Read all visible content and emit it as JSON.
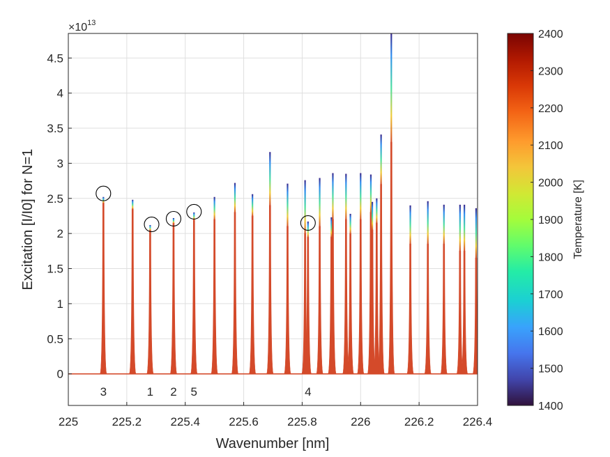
{
  "chart_data": {
    "type": "line",
    "xlabel": "Wavenumber [nm]",
    "ylabel": "Excitation [I/I0] for N=1",
    "y_exponent_label": "×10",
    "y_exponent_power": "13",
    "xlim": [
      225,
      226.4
    ],
    "ylim": [
      -0.45,
      4.85
    ],
    "grid": true,
    "x_ticks": [
      225,
      225.2,
      225.4,
      225.6,
      225.8,
      226,
      226.2,
      226.4
    ],
    "x_tick_labels": [
      "225",
      "225.2",
      "225.4",
      "225.6",
      "225.8",
      "226",
      "226.2",
      "226.4"
    ],
    "y_ticks": [
      0,
      0.5,
      1,
      1.5,
      2,
      2.5,
      3,
      3.5,
      4,
      4.5
    ],
    "y_tick_labels": [
      "0",
      "0.5",
      "1",
      "1.5",
      "2",
      "2.5",
      "3",
      "3.5",
      "4",
      "4.5"
    ],
    "colormap": "turbo",
    "peak_color": "#D44A2A",
    "colorbar": {
      "label": "Temperature [K]",
      "range": [
        1400,
        2400
      ],
      "ticks": [
        1400,
        1500,
        1600,
        1700,
        1800,
        1900,
        2000,
        2100,
        2200,
        2300,
        2400
      ],
      "tick_labels": [
        "1400",
        "1500",
        "1600",
        "1700",
        "1800",
        "1900",
        "2000",
        "2100",
        "2200",
        "2300",
        "2400"
      ]
    },
    "peaks": [
      {
        "x": 225.12,
        "top": 2.52,
        "low": 2.44
      },
      {
        "x": 225.22,
        "top": 2.48,
        "low": 2.35
      },
      {
        "x": 225.28,
        "top": 2.12,
        "low": 2.05
      },
      {
        "x": 225.36,
        "top": 2.22,
        "low": 2.15
      },
      {
        "x": 225.43,
        "top": 2.3,
        "low": 2.2
      },
      {
        "x": 225.5,
        "top": 2.52,
        "low": 2.2
      },
      {
        "x": 225.57,
        "top": 2.72,
        "low": 2.3
      },
      {
        "x": 225.63,
        "top": 2.56,
        "low": 2.25
      },
      {
        "x": 225.69,
        "top": 3.16,
        "low": 2.4
      },
      {
        "x": 225.75,
        "top": 2.71,
        "low": 2.1
      },
      {
        "x": 225.81,
        "top": 2.76,
        "low": 2.0
      },
      {
        "x": 225.82,
        "top": 2.17,
        "low": 1.95
      },
      {
        "x": 225.86,
        "top": 2.79,
        "low": 2.1
      },
      {
        "x": 225.9,
        "top": 2.23,
        "low": 1.95
      },
      {
        "x": 225.905,
        "top": 2.86,
        "low": 2.2
      },
      {
        "x": 225.95,
        "top": 2.85,
        "low": 2.2
      },
      {
        "x": 225.965,
        "top": 2.28,
        "low": 2.0
      },
      {
        "x": 226.0,
        "top": 2.86,
        "low": 2.2
      },
      {
        "x": 226.035,
        "top": 2.84,
        "low": 2.3
      },
      {
        "x": 226.04,
        "top": 2.45,
        "low": 2.05
      },
      {
        "x": 226.055,
        "top": 2.5,
        "low": 2.15
      },
      {
        "x": 226.07,
        "top": 3.41,
        "low": 2.7
      },
      {
        "x": 226.105,
        "top": 4.85,
        "low": 3.3
      },
      {
        "x": 226.17,
        "top": 2.4,
        "low": 1.85
      },
      {
        "x": 226.23,
        "top": 2.46,
        "low": 1.85
      },
      {
        "x": 226.285,
        "top": 2.41,
        "low": 1.85
      },
      {
        "x": 226.34,
        "top": 2.41,
        "low": 1.75
      },
      {
        "x": 226.355,
        "top": 2.41,
        "low": 1.75
      },
      {
        "x": 226.395,
        "top": 2.36,
        "low": 1.65
      }
    ],
    "annotations": [
      {
        "label": "3",
        "circle": [
          225.12,
          2.57
        ],
        "label_x": 225.12
      },
      {
        "label": "1",
        "circle": [
          225.285,
          2.13
        ],
        "label_x": 225.28
      },
      {
        "label": "2",
        "circle": [
          225.36,
          2.21
        ],
        "label_x": 225.36
      },
      {
        "label": "5",
        "circle": [
          225.43,
          2.31
        ],
        "label_x": 225.43
      },
      {
        "label": "4",
        "circle": [
          225.82,
          2.15
        ],
        "label_x": 225.82
      }
    ]
  }
}
